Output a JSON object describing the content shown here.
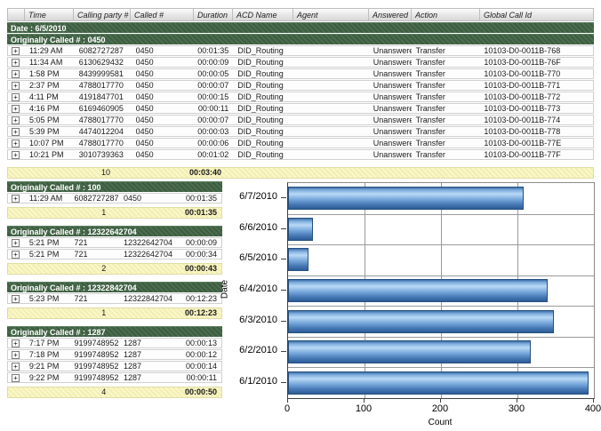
{
  "report": {
    "columns": [
      "",
      "Time",
      "Calling party #",
      "Called #",
      "Duration",
      "ACD Name",
      "Agent",
      "Answered",
      "Action",
      "Global Call Id"
    ],
    "date_header": "Date : 6/5/2010",
    "expand_glyph": "+",
    "groups": [
      {
        "title": "Originally Called # : 0450",
        "wide": true,
        "rows": [
          {
            "time": "11:29 AM",
            "calling": "6082727287",
            "called": "0450",
            "duration": "00:01:35",
            "acd": "DID_Routing",
            "agent": "",
            "answered": "Unanswered",
            "action": "Transfer",
            "global_id": "10103-D0-0011B-768"
          },
          {
            "time": "11:34 AM",
            "calling": "6130629432",
            "called": "0450",
            "duration": "00:00:09",
            "acd": "DID_Routing",
            "agent": "",
            "answered": "Unanswered",
            "action": "Transfer",
            "global_id": "10103-D0-0011B-76F"
          },
          {
            "time": "1:58 PM",
            "calling": "8439999581",
            "called": "0450",
            "duration": "00:00:05",
            "acd": "DID_Routing",
            "agent": "",
            "answered": "Unanswered",
            "action": "Transfer",
            "global_id": "10103-D0-0011B-770"
          },
          {
            "time": "2:37 PM",
            "calling": "4788017770",
            "called": "0450",
            "duration": "00:00:07",
            "acd": "DID_Routing",
            "agent": "",
            "answered": "Unanswered",
            "action": "Transfer",
            "global_id": "10103-D0-0011B-771"
          },
          {
            "time": "4:11 PM",
            "calling": "4191847701",
            "called": "0450",
            "duration": "00:00:15",
            "acd": "DID_Routing",
            "agent": "",
            "answered": "Unanswered",
            "action": "Transfer",
            "global_id": "10103-D0-0011B-772"
          },
          {
            "time": "4:16 PM",
            "calling": "6169460905",
            "called": "0450",
            "duration": "00:00:11",
            "acd": "DID_Routing",
            "agent": "",
            "answered": "Unanswered",
            "action": "Transfer",
            "global_id": "10103-D0-0011B-773"
          },
          {
            "time": "5:05 PM",
            "calling": "4788017770",
            "called": "0450",
            "duration": "00:00:07",
            "acd": "DID_Routing",
            "agent": "",
            "answered": "Unanswered",
            "action": "Transfer",
            "global_id": "10103-D0-0011B-774"
          },
          {
            "time": "5:39 PM",
            "calling": "4474012204",
            "called": "0450",
            "duration": "00:00:03",
            "acd": "DID_Routing",
            "agent": "",
            "answered": "Unanswered",
            "action": "Transfer",
            "global_id": "10103-D0-0011B-778"
          },
          {
            "time": "10:07 PM",
            "calling": "4788017770",
            "called": "0450",
            "duration": "00:00:06",
            "acd": "DID_Routing",
            "agent": "",
            "answered": "Unanswered",
            "action": "Transfer",
            "global_id": "10103-D0-0011B-77E"
          },
          {
            "time": "10:21 PM",
            "calling": "3010739363",
            "called": "0450",
            "duration": "00:01:02",
            "acd": "DID_Routing",
            "agent": "",
            "answered": "Unanswered",
            "action": "Transfer",
            "global_id": "10103-D0-0011B-77F"
          }
        ],
        "summary": {
          "count": "10",
          "total": "00:03:40"
        }
      },
      {
        "title": "Originally Called # : 100",
        "wide": false,
        "rows": [
          {
            "time": "11:29 AM",
            "calling": "6082727287",
            "called": "0450",
            "duration": "00:01:35"
          }
        ],
        "summary": {
          "count": "1",
          "total": "00:01:35"
        }
      },
      {
        "title": "Originally Called # : 12322642704",
        "wide": false,
        "rows": [
          {
            "time": "5:21 PM",
            "calling": "721",
            "called": "12322642704",
            "duration": "00:00:09"
          },
          {
            "time": "5:21 PM",
            "calling": "721",
            "called": "12322642704",
            "duration": "00:00:34"
          }
        ],
        "summary": {
          "count": "2",
          "total": "00:00:43"
        }
      },
      {
        "title": "Originally Called # : 12322842704",
        "wide": false,
        "rows": [
          {
            "time": "5:23 PM",
            "calling": "721",
            "called": "12322842704",
            "duration": "00:12:23"
          }
        ],
        "summary": {
          "count": "1",
          "total": "00:12:23"
        }
      },
      {
        "title": "Originally Called # : 1287",
        "wide": false,
        "rows": [
          {
            "time": "7:17 PM",
            "calling": "9199748952",
            "called": "1287",
            "duration": "00:00:13"
          },
          {
            "time": "7:18 PM",
            "calling": "9199748952",
            "called": "1287",
            "duration": "00:00:12"
          },
          {
            "time": "9:21 PM",
            "calling": "9199748952",
            "called": "1287",
            "duration": "00:00:14"
          },
          {
            "time": "9:22 PM",
            "calling": "9199748952",
            "called": "1287",
            "duration": "00:00:11"
          }
        ],
        "summary": {
          "count": "4",
          "total": "00:00:50"
        }
      }
    ]
  },
  "chart_data": {
    "type": "bar",
    "orientation": "horizontal",
    "categories": [
      "6/7/2010",
      "6/6/2010",
      "6/5/2010",
      "6/4/2010",
      "6/3/2010",
      "6/2/2010",
      "6/1/2010"
    ],
    "values": [
      308,
      32,
      27,
      340,
      348,
      318,
      393
    ],
    "title": "",
    "xlabel": "Count",
    "ylabel": "Date",
    "xlim": [
      0,
      400
    ],
    "xticks": [
      0,
      100,
      200,
      300,
      400
    ],
    "grid": true,
    "legend": false,
    "bar_color": "#5b93cf",
    "bar_border": "#26507f"
  }
}
